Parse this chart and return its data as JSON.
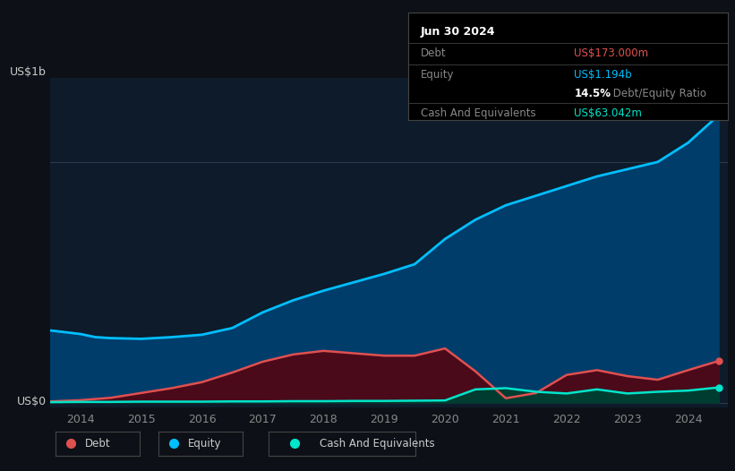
{
  "background_color": "#0d1117",
  "plot_bg_color": "#0d1b2a",
  "title_box": {
    "date": "Jun 30 2024",
    "debt_label": "Debt",
    "debt_value": "US$173.000m",
    "equity_label": "Equity",
    "equity_value": "US$1.194b",
    "ratio_value": "14.5%",
    "ratio_label": " Debt/Equity Ratio",
    "cash_label": "Cash And Equivalents",
    "cash_value": "US$63.042m"
  },
  "ylabel_top": "US$1b",
  "ylabel_bottom": "US$0",
  "x_ticks": [
    2014,
    2015,
    2016,
    2017,
    2018,
    2019,
    2020,
    2021,
    2022,
    2023,
    2024
  ],
  "equity_color": "#00bfff",
  "debt_color": "#e05050",
  "cash_color": "#00e5cc",
  "equity_fill_color": "#003d6b",
  "debt_fill_color": "#4a0a1a",
  "cash_fill_color": "#003d30",
  "legend_items": [
    "Debt",
    "Equity",
    "Cash And Equivalents"
  ],
  "legend_colors": [
    "#e05050",
    "#00bfff",
    "#00e5cc"
  ],
  "equity_data": {
    "years": [
      2013.5,
      2014.0,
      2014.25,
      2014.5,
      2015.0,
      2015.5,
      2016.0,
      2016.5,
      2017.0,
      2017.5,
      2018.0,
      2018.5,
      2019.0,
      2019.5,
      2020.0,
      2020.5,
      2021.0,
      2021.5,
      2022.0,
      2022.5,
      2023.0,
      2023.5,
      2024.0,
      2024.5
    ],
    "values": [
      0.3,
      0.285,
      0.272,
      0.268,
      0.265,
      0.272,
      0.282,
      0.31,
      0.375,
      0.425,
      0.465,
      0.5,
      0.535,
      0.575,
      0.68,
      0.76,
      0.82,
      0.86,
      0.9,
      0.94,
      0.97,
      1.0,
      1.08,
      1.194
    ]
  },
  "debt_data": {
    "years": [
      2013.5,
      2014.0,
      2014.5,
      2015.0,
      2015.5,
      2016.0,
      2016.5,
      2017.0,
      2017.5,
      2018.0,
      2018.5,
      2019.0,
      2019.5,
      2020.0,
      2020.5,
      2021.0,
      2021.5,
      2022.0,
      2022.5,
      2023.0,
      2023.5,
      2024.0,
      2024.5
    ],
    "values": [
      0.005,
      0.01,
      0.02,
      0.04,
      0.06,
      0.085,
      0.125,
      0.17,
      0.2,
      0.215,
      0.205,
      0.195,
      0.195,
      0.225,
      0.13,
      0.018,
      0.04,
      0.115,
      0.135,
      0.11,
      0.095,
      0.135,
      0.173
    ]
  },
  "cash_data": {
    "years": [
      2013.5,
      2014.0,
      2014.5,
      2015.0,
      2015.5,
      2016.0,
      2016.5,
      2017.0,
      2017.5,
      2018.0,
      2018.5,
      2019.0,
      2019.5,
      2020.0,
      2020.5,
      2021.0,
      2021.5,
      2022.0,
      2022.5,
      2023.0,
      2023.5,
      2024.0,
      2024.5
    ],
    "values": [
      0.002,
      0.003,
      0.003,
      0.004,
      0.004,
      0.004,
      0.005,
      0.005,
      0.006,
      0.006,
      0.007,
      0.007,
      0.008,
      0.009,
      0.055,
      0.06,
      0.045,
      0.038,
      0.055,
      0.038,
      0.045,
      0.05,
      0.063
    ]
  },
  "xlim": [
    2013.5,
    2024.65
  ],
  "ylim": [
    -0.02,
    1.35
  ]
}
